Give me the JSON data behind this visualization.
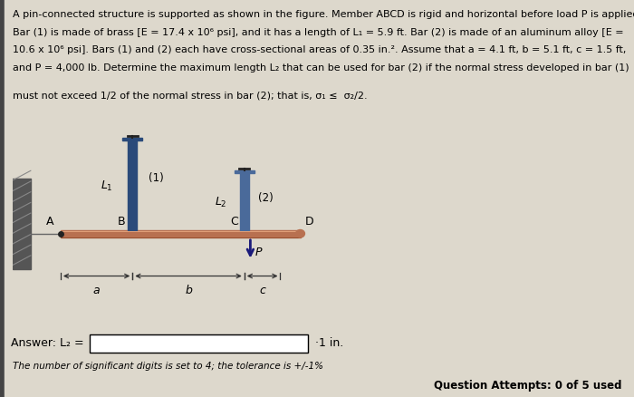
{
  "bg_color": "#ddd8cc",
  "text_color": "#000000",
  "line1": "A pin-connected structure is supported as shown in the figure. Member ABCD is rigid and horizontal before load P is applied.",
  "line2": "Bar (1) is made of brass [E = 17.4 x 10⁶ psi], and it has a length of L₁ = 5.9 ft. Bar (2) is made of an aluminum alloy [E =",
  "line3": "10.6 x 10⁶ psi]. Bars (1) and (2) each have cross-sectional areas of 0.35 in.². Assume that a = 4.1 ft, b = 5.1 ft, c = 1.5 ft,",
  "line4": "and P = 4,000 lb. Determine the maximum length L₂ that can be used for bar (2) if the normal stress developed in bar (1)",
  "line5": "must not exceed 1/2 of the normal stress in bar (2); that is, σ₁ ≤  σ₂/2.",
  "answer_label": "Answer: L₂ =",
  "answer_unit": "·1 in.",
  "footer_text": "The number of significant digits is set to 4; the tolerance is +/-1%",
  "question_attempts": "Question Attempts: 0 of 5 used",
  "beam_color": "#b87050",
  "bar1_color": "#2a4a7a",
  "bar2_color": "#4a6a9a",
  "wall_dark": "#555555",
  "wall_light": "#888888",
  "dim_color": "#333333",
  "arrow_color": "#1a1a7a",
  "pin_color": "#222222"
}
